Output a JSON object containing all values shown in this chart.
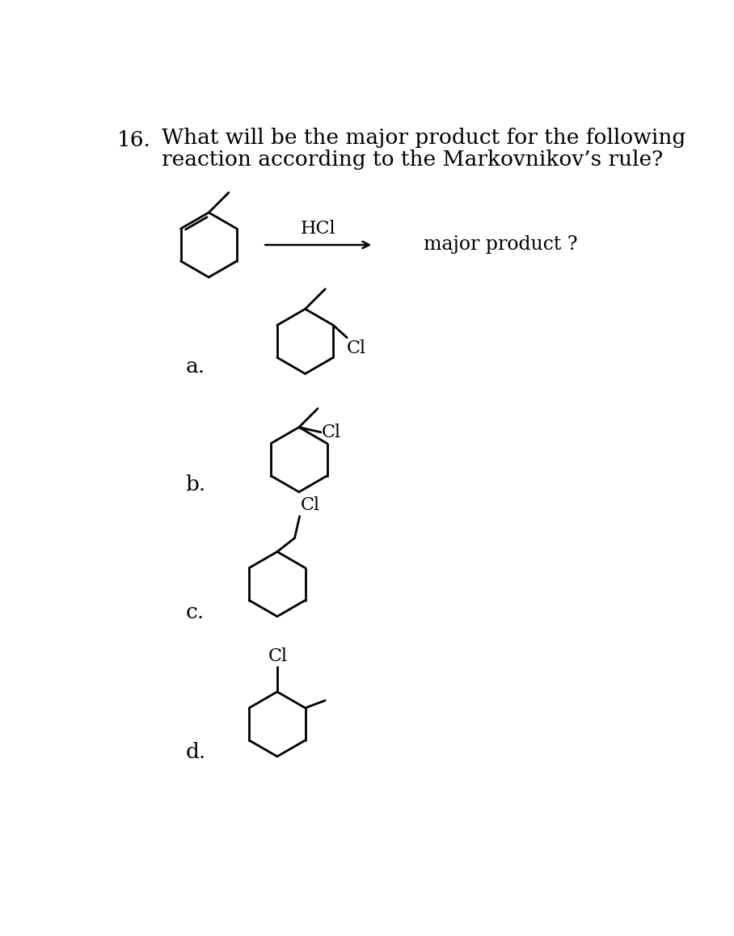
{
  "title_line1": "What will be the major product for the following",
  "title_line2": "reaction according to the Markovnikov’s rule?",
  "question_number": "16.",
  "reagent": "HCl",
  "major_product_text": "major product ?",
  "options": [
    "a.",
    "b.",
    "c.",
    "d."
  ],
  "bg_color": "#ffffff",
  "text_color": "#000000",
  "line_color": "#000000",
  "title_fontsize": 19,
  "option_label_fontsize": 19,
  "reagent_fontsize": 16,
  "major_product_fontsize": 17,
  "cl_fontsize": 16
}
